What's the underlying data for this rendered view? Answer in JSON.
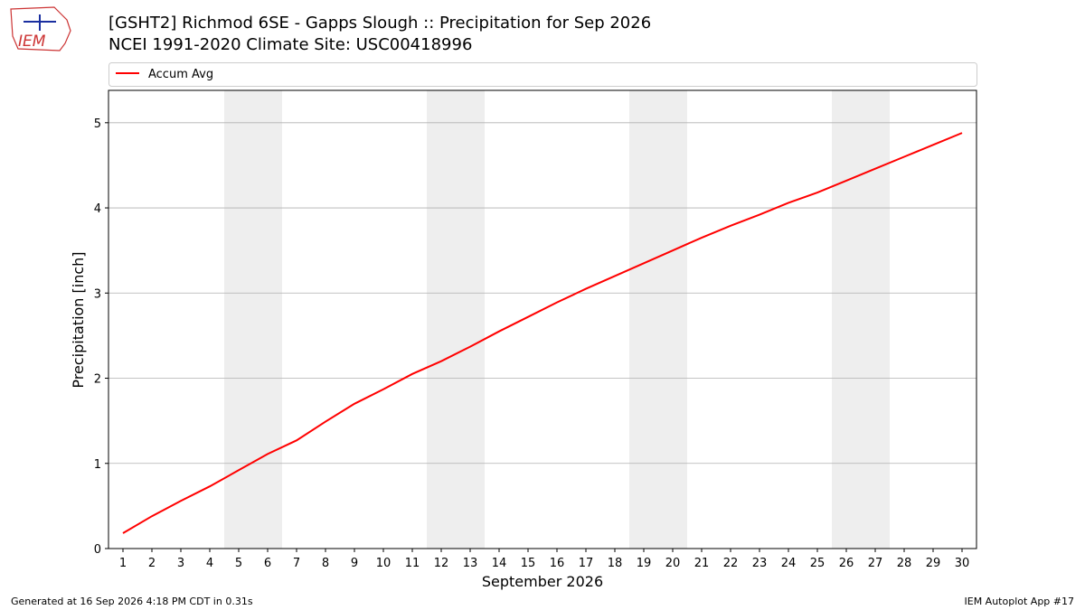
{
  "chart_data": {
    "type": "line",
    "title": "[GSHT2] Richmod 6SE - Gapps Slough :: Precipitation for Sep 2026",
    "subtitle": "NCEI 1991-2020 Climate Site: USC00418996",
    "logo_text": "IEM",
    "x_label": "September 2026",
    "y_label": "Precipitation [inch]",
    "x": [
      1,
      2,
      3,
      4,
      5,
      6,
      7,
      8,
      9,
      10,
      11,
      12,
      13,
      14,
      15,
      16,
      17,
      18,
      19,
      20,
      21,
      22,
      23,
      24,
      25,
      26,
      27,
      28,
      29,
      30
    ],
    "series": [
      {
        "name": "Accum Avg",
        "color": "#ff0000",
        "values": [
          0.18,
          0.38,
          0.56,
          0.73,
          0.92,
          1.11,
          1.27,
          1.49,
          1.7,
          1.87,
          2.05,
          2.2,
          2.37,
          2.55,
          2.72,
          2.89,
          3.05,
          3.2,
          3.35,
          3.5,
          3.65,
          3.79,
          3.92,
          4.06,
          4.18,
          4.32,
          4.46,
          4.6,
          4.74,
          4.88
        ]
      }
    ],
    "shaded_x_ranges": [
      [
        4.5,
        6.5
      ],
      [
        11.5,
        13.5
      ],
      [
        18.5,
        20.5
      ],
      [
        25.5,
        27.5
      ]
    ],
    "shade_color": "#eeeeee",
    "xlim": [
      0.5,
      30.5
    ],
    "ylim": [
      0,
      5.38
    ],
    "xticks": [
      1,
      2,
      3,
      4,
      5,
      6,
      7,
      8,
      9,
      10,
      11,
      12,
      13,
      14,
      15,
      16,
      17,
      18,
      19,
      20,
      21,
      22,
      23,
      24,
      25,
      26,
      27,
      28,
      29,
      30
    ],
    "yticks": [
      0,
      1,
      2,
      3,
      4,
      5
    ],
    "grid": "y",
    "legend": "top",
    "footer_left": "Generated at 16 Sep 2026 4:18 PM CDT in 0.31s",
    "footer_right": "IEM Autoplot App #17"
  }
}
